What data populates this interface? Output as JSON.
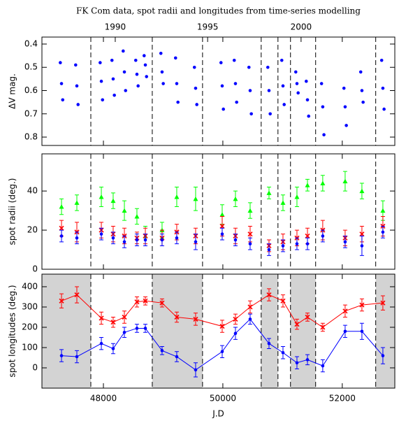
{
  "chart_data": [
    {
      "type": "scatter",
      "title": "FK Com data, spot radii and longitudes from time-series modelling",
      "ylabel": "ΔV mag.",
      "xlim": [
        46970,
        52880
      ],
      "ylim": [
        0.836,
        0.37
      ],
      "yticks": [
        0.4,
        0.5,
        0.6,
        0.7,
        0.8
      ],
      "x2ticks": [
        {
          "value": 48198,
          "label": "1990"
        },
        {
          "value": 49745,
          "label": "1995"
        },
        {
          "value": 51310,
          "label": "2000"
        }
      ],
      "vlines": [
        47789,
        48818,
        49660,
        50642,
        50923,
        51133,
        51554,
        52560
      ],
      "series": [
        {
          "color": "#0000ff",
          "marker": "circle",
          "x": [
            47278,
            47298,
            47318,
            47535,
            47555,
            47575,
            47945,
            47965,
            47985,
            48143,
            48163,
            48183,
            48331,
            48351,
            48371,
            48541,
            48561,
            48581,
            48682,
            48702,
            48722,
            48962,
            48982,
            49002,
            49208,
            49228,
            49248,
            49524,
            49544,
            49564,
            49969,
            49989,
            50009,
            50191,
            50211,
            50231,
            50437,
            50457,
            50477,
            50753,
            50773,
            50793,
            50987,
            51007,
            51027,
            51221,
            51241,
            51261,
            51397,
            51417,
            51437,
            51653,
            51673,
            51693,
            52028,
            52048,
            52068,
            52309,
            52329,
            52349,
            52660,
            52680,
            52700
          ],
          "values": [
            0.48,
            0.57,
            0.64,
            0.49,
            0.58,
            0.66,
            0.48,
            0.56,
            0.64,
            0.47,
            0.55,
            0.62,
            0.43,
            0.52,
            0.6,
            0.47,
            0.53,
            0.58,
            0.45,
            0.49,
            0.54,
            0.44,
            0.52,
            0.57,
            0.46,
            0.57,
            0.65,
            0.5,
            0.59,
            0.66,
            0.48,
            0.58,
            0.68,
            0.47,
            0.57,
            0.65,
            0.5,
            0.6,
            0.7,
            0.5,
            0.6,
            0.7,
            0.47,
            0.58,
            0.66,
            0.52,
            0.57,
            0.61,
            0.56,
            0.64,
            0.71,
            0.57,
            0.67,
            0.79,
            0.59,
            0.67,
            0.75,
            0.52,
            0.6,
            0.65,
            0.47,
            0.59,
            0.68
          ]
        }
      ]
    },
    {
      "type": "scatter",
      "ylabel": "spot radii (deg.)",
      "xlim": [
        46970,
        52880
      ],
      "ylim": [
        0,
        59
      ],
      "yticks": [
        0,
        20,
        40
      ],
      "series": [
        {
          "color": "#00ff00",
          "marker": "triangle",
          "x": [
            47298,
            47555,
            47965,
            48163,
            48351,
            48561,
            48702,
            48982,
            49228,
            49544,
            49989,
            50211,
            50457,
            50773,
            51007,
            51241,
            51417,
            51673,
            52048,
            52329,
            52680
          ],
          "values": [
            32,
            34,
            37,
            35,
            30,
            27,
            17,
            20,
            37,
            36,
            28,
            36,
            30,
            39,
            34,
            37,
            43,
            44,
            45,
            40,
            30
          ],
          "errors": [
            4,
            4,
            5,
            4,
            5,
            4,
            5,
            4,
            5,
            6,
            5,
            4,
            4,
            3,
            4,
            5,
            3,
            4,
            5,
            4,
            5
          ]
        },
        {
          "color": "#ff0000",
          "marker": "x",
          "x": [
            47298,
            47555,
            47965,
            48163,
            48351,
            48561,
            48702,
            48982,
            49228,
            49544,
            49989,
            50211,
            50457,
            50773,
            51007,
            51241,
            51417,
            51673,
            52048,
            52329,
            52680
          ],
          "values": [
            21,
            19,
            20,
            18,
            17,
            16,
            17,
            16,
            19,
            17,
            22,
            17,
            18,
            12,
            14,
            16,
            17,
            20,
            16,
            18,
            22
          ],
          "errors": [
            4,
            5,
            4,
            4,
            4,
            3,
            4,
            4,
            4,
            4,
            5,
            4,
            4,
            3,
            4,
            4,
            4,
            5,
            4,
            4,
            5
          ]
        },
        {
          "color": "#0000ff",
          "marker": "circle",
          "x": [
            47298,
            47555,
            47965,
            48163,
            48351,
            48561,
            48702,
            48982,
            49228,
            49544,
            49989,
            50211,
            50457,
            50773,
            51007,
            51241,
            51417,
            51673,
            52048,
            52329,
            52680
          ],
          "values": [
            17,
            16,
            18,
            16,
            14,
            15,
            15,
            15,
            16,
            14,
            18,
            15,
            13,
            10,
            12,
            13,
            13,
            17,
            14,
            12,
            19
          ],
          "errors": [
            3,
            3,
            3,
            3,
            3,
            3,
            3,
            3,
            3,
            4,
            3,
            3,
            3,
            3,
            3,
            3,
            3,
            3,
            3,
            5,
            3
          ]
        }
      ]
    },
    {
      "type": "line",
      "ylabel": "spot longitudes (deg.)",
      "xlabel": "J.D",
      "xlim": [
        46970,
        52880
      ],
      "ylim": [
        -100,
        462
      ],
      "yticks": [
        0,
        100,
        200,
        300,
        400
      ],
      "xticks": [
        48000,
        50000,
        52000
      ],
      "shaded_regions": [
        [
          46970,
          47789
        ],
        [
          48818,
          49660
        ],
        [
          50642,
          50923
        ],
        [
          51133,
          51554
        ],
        [
          52560,
          52880
        ]
      ],
      "series": [
        {
          "color": "#ff0000",
          "marker": "x",
          "x": [
            47298,
            47555,
            47965,
            48163,
            48351,
            48561,
            48702,
            48982,
            49228,
            49544,
            49989,
            50211,
            50457,
            50773,
            51007,
            51241,
            51417,
            51673,
            52048,
            52329,
            52680
          ],
          "values": [
            330,
            360,
            245,
            225,
            250,
            325,
            330,
            320,
            250,
            240,
            205,
            240,
            300,
            360,
            330,
            215,
            250,
            200,
            280,
            310,
            320
          ],
          "errors": [
            35,
            40,
            30,
            25,
            30,
            25,
            20,
            20,
            25,
            30,
            30,
            25,
            30,
            30,
            30,
            25,
            20,
            20,
            30,
            30,
            35
          ]
        },
        {
          "color": "#0000ff",
          "marker": "circle",
          "x": [
            47298,
            47555,
            47965,
            48163,
            48351,
            48561,
            48702,
            48982,
            49228,
            49544,
            49989,
            50211,
            50457,
            50773,
            51007,
            51241,
            51417,
            51673,
            52048,
            52329,
            52680
          ],
          "values": [
            60,
            55,
            120,
            95,
            175,
            195,
            195,
            85,
            55,
            -10,
            80,
            170,
            240,
            120,
            75,
            25,
            40,
            10,
            180,
            180,
            60
          ],
          "errors": [
            30,
            30,
            30,
            25,
            25,
            20,
            20,
            20,
            25,
            35,
            30,
            30,
            25,
            25,
            30,
            30,
            25,
            30,
            30,
            40,
            40
          ]
        }
      ]
    }
  ]
}
